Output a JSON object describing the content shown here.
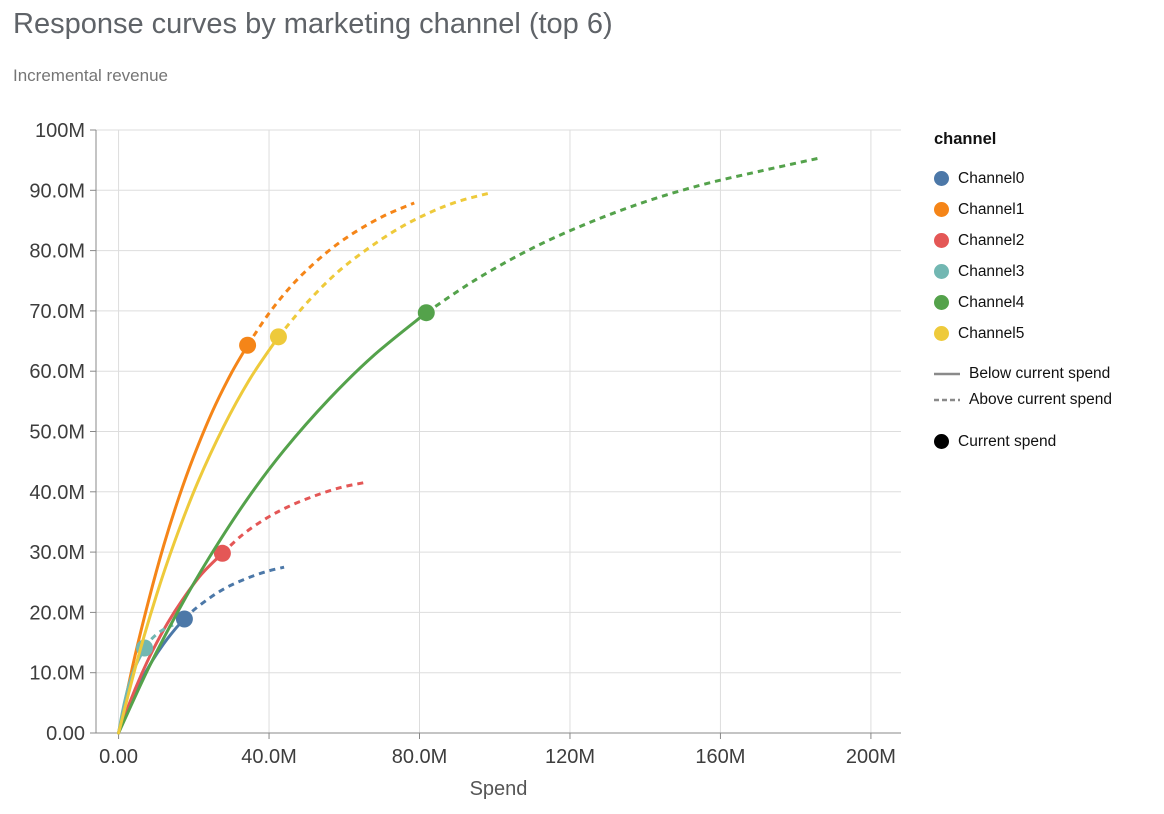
{
  "chart_data": {
    "type": "line",
    "title": "Response curves by marketing channel (top 6)",
    "subtitle": "Incremental revenue",
    "xlabel": "Spend",
    "ylabel": "Incremental revenue",
    "units": "M",
    "xlim": [
      -6,
      208
    ],
    "ylim": [
      0,
      100
    ],
    "grid": true,
    "grid_color": "#dddddd",
    "axis_color": "#888888",
    "label_color": "#3d3d3d",
    "x_ticks": [
      {
        "value": 0,
        "label": "0.00"
      },
      {
        "value": 40,
        "label": "40.0M"
      },
      {
        "value": 80,
        "label": "80.0M"
      },
      {
        "value": 120,
        "label": "120M"
      },
      {
        "value": 160,
        "label": "160M"
      },
      {
        "value": 200,
        "label": "200M"
      }
    ],
    "y_ticks": [
      {
        "value": 0,
        "label": "0.00"
      },
      {
        "value": 10,
        "label": "10.0M"
      },
      {
        "value": 20,
        "label": "20.0M"
      },
      {
        "value": 30,
        "label": "30.0M"
      },
      {
        "value": 40,
        "label": "40.0M"
      },
      {
        "value": 50,
        "label": "50.0M"
      },
      {
        "value": 60,
        "label": "60.0M"
      },
      {
        "value": 70,
        "label": "70.0M"
      },
      {
        "value": 80,
        "label": "80.0M"
      },
      {
        "value": 90,
        "label": "90.0M"
      },
      {
        "value": 100,
        "label": "100M"
      }
    ],
    "legend": {
      "title": "channel",
      "position": "right",
      "line_color": "#8a8a8a",
      "line_styles": [
        {
          "style": "solid",
          "label": "Below current spend"
        },
        {
          "style": "dashed",
          "label": "Above current spend"
        }
      ],
      "point_color": "#000000",
      "point_label": "Current spend"
    },
    "series": [
      {
        "name": "Channel0",
        "color": "#4c78a8",
        "current_spend": [
          17.5,
          18.9
        ],
        "solid": [
          [
            0,
            0
          ],
          [
            2,
            3.2
          ],
          [
            4,
            6.1
          ],
          [
            6,
            8.7
          ],
          [
            9,
            12.0
          ],
          [
            12,
            14.8
          ],
          [
            15,
            17.2
          ],
          [
            17.5,
            18.9
          ]
        ],
        "dashed": [
          [
            17.5,
            18.9
          ],
          [
            20,
            20.4
          ],
          [
            24,
            22.3
          ],
          [
            28,
            23.9
          ],
          [
            32,
            25.1
          ],
          [
            36,
            26.1
          ],
          [
            40,
            26.9
          ],
          [
            44,
            27.5
          ]
        ]
      },
      {
        "name": "Channel1",
        "color": "#f58518",
        "current_spend": [
          34.3,
          64.3
        ],
        "solid": [
          [
            0,
            0
          ],
          [
            4,
            11.8
          ],
          [
            8,
            22.0
          ],
          [
            12,
            31.1
          ],
          [
            16,
            39.0
          ],
          [
            20,
            45.9
          ],
          [
            25,
            53.4
          ],
          [
            30,
            59.7
          ],
          [
            34.3,
            64.3
          ]
        ],
        "dashed": [
          [
            34.3,
            64.3
          ],
          [
            40,
            69.6
          ],
          [
            46,
            74.2
          ],
          [
            52,
            77.9
          ],
          [
            58,
            81.0
          ],
          [
            64,
            83.5
          ],
          [
            71,
            85.9
          ],
          [
            78.6,
            87.9
          ]
        ]
      },
      {
        "name": "Channel2",
        "color": "#e45756",
        "current_spend": [
          27.6,
          29.8
        ],
        "solid": [
          [
            0,
            0
          ],
          [
            3,
            5.1
          ],
          [
            6,
            9.6
          ],
          [
            9,
            13.6
          ],
          [
            13,
            18.2
          ],
          [
            17,
            22.1
          ],
          [
            22,
            26.3
          ],
          [
            27.6,
            29.8
          ]
        ],
        "dashed": [
          [
            27.6,
            29.8
          ],
          [
            33,
            32.9
          ],
          [
            39,
            35.5
          ],
          [
            45,
            37.5
          ],
          [
            52,
            39.3
          ],
          [
            59,
            40.7
          ],
          [
            65.9,
            41.6
          ]
        ]
      },
      {
        "name": "Channel3",
        "color": "#72b7b2",
        "current_spend": [
          6.9,
          14.1
        ],
        "solid": [
          [
            0,
            0
          ],
          [
            1,
            3.4
          ],
          [
            2,
            6.2
          ],
          [
            3,
            8.5
          ],
          [
            4.5,
            11.1
          ],
          [
            6.9,
            14.1
          ]
        ],
        "dashed": [
          [
            6.9,
            14.1
          ],
          [
            8.5,
            15.4
          ],
          [
            10,
            16.3
          ],
          [
            11.5,
            17.0
          ],
          [
            13,
            17.5
          ],
          [
            14.5,
            17.9
          ]
        ]
      },
      {
        "name": "Channel4",
        "color": "#54a24b",
        "current_spend": [
          81.8,
          69.7
        ],
        "solid": [
          [
            0,
            0
          ],
          [
            8,
            10.8
          ],
          [
            16,
            20.4
          ],
          [
            24,
            29.0
          ],
          [
            34,
            38.6
          ],
          [
            44,
            46.9
          ],
          [
            56,
            55.4
          ],
          [
            68,
            62.7
          ],
          [
            81.8,
            69.7
          ]
        ],
        "dashed": [
          [
            81.8,
            69.7
          ],
          [
            95,
            75.2
          ],
          [
            110,
            80.4
          ],
          [
            125,
            84.6
          ],
          [
            140,
            88.1
          ],
          [
            155,
            90.9
          ],
          [
            170,
            93.1
          ],
          [
            186.7,
            95.4
          ]
        ]
      },
      {
        "name": "Channel5",
        "color": "#eeca3b",
        "current_spend": [
          42.5,
          65.7
        ],
        "solid": [
          [
            0,
            0
          ],
          [
            5,
            12.1
          ],
          [
            10,
            22.7
          ],
          [
            15,
            31.9
          ],
          [
            21,
            41.5
          ],
          [
            28,
            50.9
          ],
          [
            35,
            58.8
          ],
          [
            42.5,
            65.7
          ]
        ],
        "dashed": [
          [
            42.5,
            65.7
          ],
          [
            50,
            71.3
          ],
          [
            58,
            76.3
          ],
          [
            66,
            80.2
          ],
          [
            74,
            83.5
          ],
          [
            82,
            86.1
          ],
          [
            90,
            88.1
          ],
          [
            99,
            89.6
          ]
        ]
      }
    ]
  }
}
